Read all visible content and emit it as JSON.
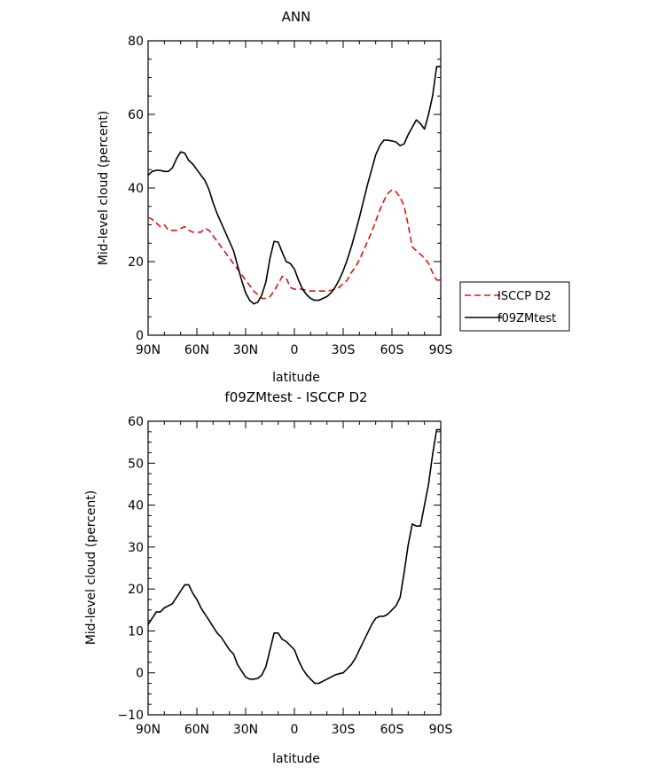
{
  "chart_data": [
    {
      "type": "line",
      "title": "ANN",
      "xlabel": "latitude",
      "ylabel": "Mid-level cloud (percent)",
      "xlim": [
        -90,
        90
      ],
      "ylim": [
        0,
        80
      ],
      "x_ticks": [
        -90,
        -60,
        -30,
        0,
        30,
        60,
        90
      ],
      "x_tick_labels": [
        "90N",
        "60N",
        "30N",
        "0",
        "30S",
        "60S",
        "90S"
      ],
      "y_ticks": [
        0,
        20,
        40,
        60,
        80
      ],
      "y_tick_labels": [
        "0",
        "20",
        "40",
        "60",
        "80"
      ],
      "grid": false,
      "legend_position": "right",
      "series": [
        {
          "name": "ISCCP D2",
          "color": "#e01010",
          "dash": "dashed",
          "x": [
            -90,
            -87.5,
            -85,
            -82.5,
            -80,
            -77.5,
            -75,
            -72.5,
            -70,
            -67.5,
            -65,
            -62.5,
            -60,
            -57.5,
            -55,
            -52.5,
            -50,
            -47.5,
            -45,
            -42.5,
            -40,
            -37.5,
            -35,
            -32.5,
            -30,
            -27.5,
            -25,
            -22.5,
            -20,
            -17.5,
            -15,
            -12.5,
            -10,
            -7.5,
            -5,
            -2.5,
            0,
            2.5,
            5,
            7.5,
            10,
            12.5,
            15,
            17.5,
            20,
            22.5,
            25,
            27.5,
            30,
            32.5,
            35,
            37.5,
            40,
            42.5,
            45,
            47.5,
            50,
            52.5,
            55,
            57.5,
            60,
            62.5,
            65,
            67.5,
            70,
            72.5,
            75,
            77.5,
            80,
            82.5,
            85,
            87.5,
            90
          ],
          "y": [
            32,
            31.5,
            30.5,
            29.5,
            30,
            28.5,
            28.5,
            28.5,
            29,
            29.5,
            28.5,
            28,
            28,
            28,
            29,
            28.5,
            27,
            25.5,
            24,
            22.5,
            21,
            19.5,
            18,
            16.5,
            15,
            13.5,
            12,
            11,
            10,
            10,
            10.5,
            12,
            14,
            16,
            15.5,
            13,
            12.5,
            12.5,
            12.5,
            12.2,
            12,
            12,
            12,
            12,
            12,
            12.2,
            12.5,
            13,
            14,
            15,
            17,
            18.5,
            20.5,
            23,
            25.5,
            28,
            31,
            34,
            36.5,
            38.5,
            39.5,
            39,
            37.5,
            35,
            30,
            24,
            23,
            22,
            21,
            19.5,
            17,
            15,
            15
          ]
        },
        {
          "name": "f09ZMtest",
          "color": "#000000",
          "dash": "solid",
          "x": [
            -90,
            -87.5,
            -85,
            -82.5,
            -80,
            -77.5,
            -75,
            -72.5,
            -70,
            -67.5,
            -65,
            -62.5,
            -60,
            -57.5,
            -55,
            -52.5,
            -50,
            -47.5,
            -45,
            -42.5,
            -40,
            -37.5,
            -35,
            -32.5,
            -30,
            -27.5,
            -25,
            -22.5,
            -20,
            -17.5,
            -15,
            -12.5,
            -10,
            -7.5,
            -5,
            -2.5,
            0,
            2.5,
            5,
            7.5,
            10,
            12.5,
            15,
            17.5,
            20,
            22.5,
            25,
            27.5,
            30,
            32.5,
            35,
            37.5,
            40,
            42.5,
            45,
            47.5,
            50,
            52.5,
            55,
            57.5,
            60,
            62.5,
            65,
            67.5,
            70,
            72.5,
            75,
            77.5,
            80,
            82.5,
            85,
            87.5,
            90
          ],
          "y": [
            43.5,
            44.5,
            44.8,
            44.8,
            44.5,
            44.5,
            45.5,
            48,
            49.8,
            49.5,
            47.5,
            46.5,
            45,
            43.5,
            42,
            39.5,
            36,
            33,
            30.5,
            28,
            25.5,
            23,
            19,
            15,
            11.5,
            9.5,
            8.5,
            9,
            11,
            14.5,
            21,
            25.5,
            25.3,
            22.5,
            20,
            19.5,
            18,
            15,
            12.5,
            11,
            10,
            9.5,
            9.5,
            10,
            10.5,
            11.5,
            13,
            15,
            17.5,
            20.5,
            24,
            28,
            32,
            36.5,
            41,
            45,
            49,
            51.5,
            53,
            53,
            52.8,
            52.5,
            51.5,
            52,
            54.5,
            56.5,
            58.5,
            57.5,
            56,
            60,
            65,
            73,
            73
          ]
        }
      ]
    },
    {
      "type": "line",
      "title": "f09ZMtest - ISCCP D2",
      "xlabel": "latitude",
      "ylabel": "Mid-level cloud (percent)",
      "xlim": [
        -90,
        90
      ],
      "ylim": [
        -10,
        60
      ],
      "x_ticks": [
        -90,
        -60,
        -30,
        0,
        30,
        60,
        90
      ],
      "x_tick_labels": [
        "90N",
        "60N",
        "30N",
        "0",
        "30S",
        "60S",
        "90S"
      ],
      "y_ticks": [
        -10,
        0,
        10,
        20,
        30,
        40,
        50,
        60
      ],
      "y_tick_labels": [
        "−10",
        "0",
        "10",
        "20",
        "30",
        "40",
        "50",
        "60"
      ],
      "grid": false,
      "series": [
        {
          "color": "#000000",
          "dash": "solid",
          "x": [
            -90,
            -87.5,
            -85,
            -82.5,
            -80,
            -77.5,
            -75,
            -72.5,
            -70,
            -67.5,
            -65,
            -62.5,
            -60,
            -57.5,
            -55,
            -52.5,
            -50,
            -47.5,
            -45,
            -42.5,
            -40,
            -37.5,
            -35,
            -32.5,
            -30,
            -27.5,
            -25,
            -22.5,
            -20,
            -17.5,
            -15,
            -12.5,
            -10,
            -7.5,
            -5,
            -2.5,
            0,
            2.5,
            5,
            7.5,
            10,
            12.5,
            15,
            17.5,
            20,
            22.5,
            25,
            27.5,
            30,
            32.5,
            35,
            37.5,
            40,
            42.5,
            45,
            47.5,
            50,
            52.5,
            55,
            57.5,
            60,
            62.5,
            65,
            67.5,
            70,
            72.5,
            75,
            77.5,
            80,
            82.5,
            85,
            87.5,
            90
          ],
          "y": [
            11.5,
            13,
            14.5,
            14.5,
            15.5,
            16,
            16.5,
            18,
            19.5,
            21,
            21,
            19,
            17.5,
            15.5,
            14,
            12.5,
            11,
            9.5,
            8.5,
            7,
            5.5,
            4.5,
            2,
            0.5,
            -1,
            -1.5,
            -1.5,
            -1.3,
            -0.5,
            1.5,
            5.5,
            9.5,
            9.5,
            8,
            7.5,
            6.5,
            5.5,
            3,
            1,
            -0.5,
            -1.5,
            -2.5,
            -2.5,
            -2,
            -1.5,
            -1,
            -0.5,
            -0.2,
            0,
            1,
            2,
            3.5,
            5.5,
            7.5,
            9.5,
            11.5,
            13,
            13.5,
            13.5,
            14,
            15,
            16,
            18,
            24,
            30.5,
            35.5,
            35,
            35,
            40,
            45,
            52,
            58,
            58
          ]
        }
      ]
    }
  ]
}
